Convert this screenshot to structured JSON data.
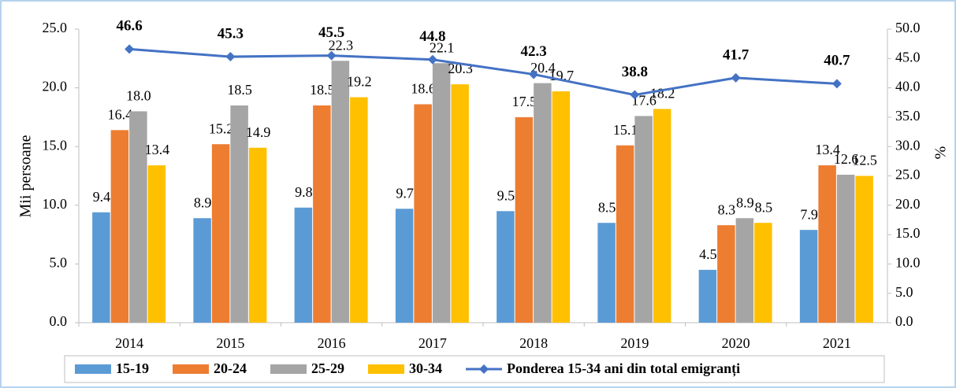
{
  "chart_data": {
    "type": "bar",
    "categories": [
      "2014",
      "2015",
      "2016",
      "2017",
      "2018",
      "2019",
      "2020",
      "2021"
    ],
    "y_label": "Mii persoane",
    "y2_label": "%",
    "ylim": [
      0,
      25
    ],
    "yticks": [
      {
        "value": 0,
        "label": "0.0"
      },
      {
        "value": 5,
        "label": "5.0"
      },
      {
        "value": 10,
        "label": "10.0"
      },
      {
        "value": 15,
        "label": "15.0"
      },
      {
        "value": 20,
        "label": "20.0"
      },
      {
        "value": 25,
        "label": "25.0"
      }
    ],
    "y2lim": [
      0,
      50
    ],
    "y2ticks": [
      {
        "value": 0,
        "label": "0.0"
      },
      {
        "value": 5,
        "label": "5.0"
      },
      {
        "value": 10,
        "label": "10.0"
      },
      {
        "value": 15,
        "label": "15.0"
      },
      {
        "value": 20,
        "label": "20.0"
      },
      {
        "value": 25,
        "label": "25.0"
      },
      {
        "value": 30,
        "label": "30.0"
      },
      {
        "value": 35,
        "label": "35.0"
      },
      {
        "value": 40,
        "label": "40.0"
      },
      {
        "value": 45,
        "label": "45.0"
      },
      {
        "value": 50,
        "label": "50.0"
      }
    ],
    "grid": false,
    "series": [
      {
        "name": "15-19",
        "color": "#5b9bd5",
        "values": [
          9.4,
          8.9,
          9.8,
          9.7,
          9.5,
          8.5,
          4.5,
          7.9
        ],
        "value_labels": [
          "9.4",
          "8.9",
          "9.8",
          "9.7",
          "9.5",
          "8.5",
          "4.5",
          "7.9"
        ]
      },
      {
        "name": "20-24",
        "color": "#ed7d31",
        "values": [
          16.4,
          15.2,
          18.5,
          18.6,
          17.5,
          15.1,
          8.3,
          13.4
        ],
        "value_labels": [
          "16.4",
          "15.2",
          "18.5",
          "18.6",
          "17.5",
          "15.1",
          "8.3",
          "13.4"
        ]
      },
      {
        "name": "25-29",
        "color": "#a5a5a5",
        "values": [
          18.0,
          18.5,
          22.3,
          22.1,
          20.4,
          17.6,
          8.9,
          12.6
        ],
        "value_labels": [
          "18.0",
          "18.5",
          "22.3",
          "22.1",
          "20.4",
          "17.6",
          "8.9",
          "12.6"
        ]
      },
      {
        "name": "30-34",
        "color": "#ffc000",
        "values": [
          13.4,
          14.9,
          19.2,
          20.3,
          19.7,
          18.2,
          8.5,
          12.5
        ],
        "value_labels": [
          "13.4",
          "14.9",
          "19.2",
          "20.3",
          "19.7",
          "18.2",
          "8.5",
          "12.5"
        ]
      },
      {
        "name": "Ponderea 15-34 ani din total emigranți",
        "type": "line",
        "axis": "y2",
        "color": "#4472c4",
        "values": [
          46.6,
          45.3,
          45.5,
          44.8,
          42.3,
          38.8,
          41.7,
          40.7
        ],
        "value_labels": [
          "46.6",
          "45.3",
          "45.5",
          "44.8",
          "42.3",
          "38.8",
          "41.7",
          "40.7"
        ]
      }
    ]
  }
}
